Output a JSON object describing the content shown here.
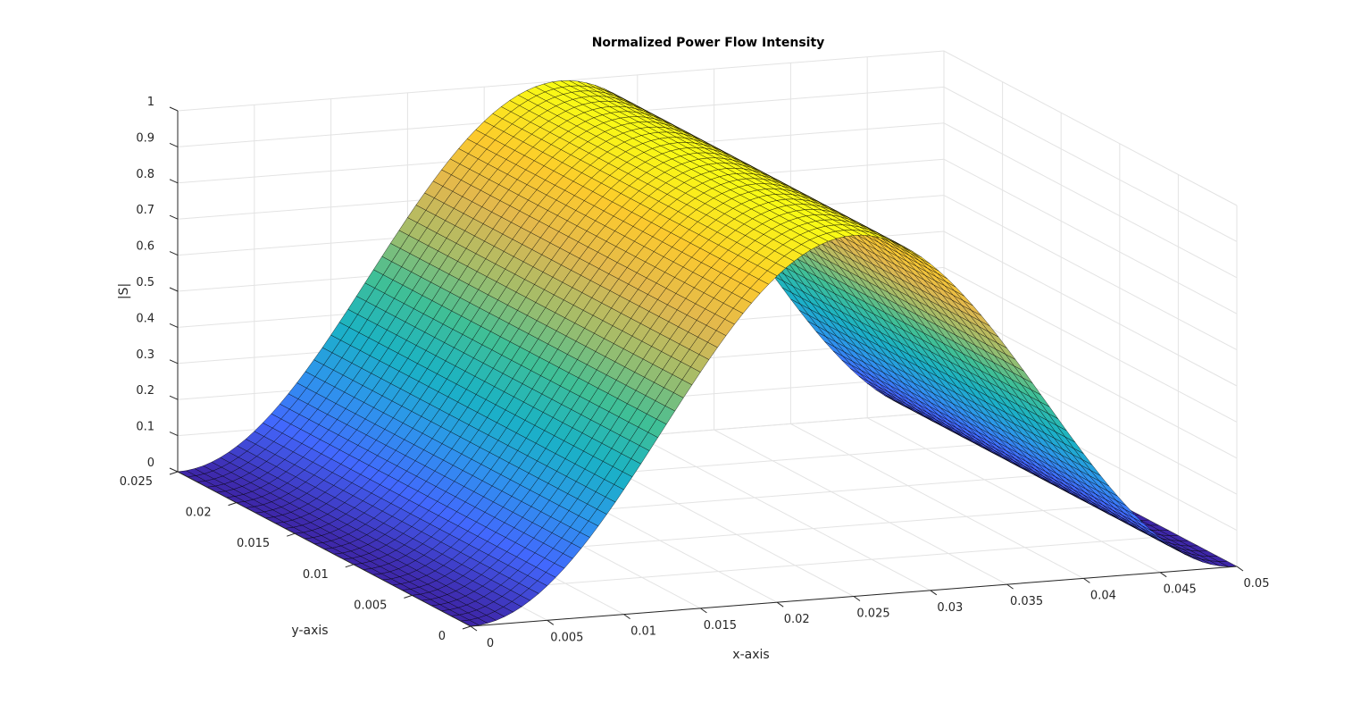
{
  "chart_data": {
    "type": "surface",
    "title": "Normalized Power Flow Intensity",
    "xlabel": "x-axis",
    "ylabel": "y-axis",
    "zlabel": "|S|",
    "xlim": [
      0,
      0.05
    ],
    "ylim": [
      0,
      0.025
    ],
    "zlim": [
      0,
      1
    ],
    "x_ticks": [
      "0",
      "0.005",
      "0.01",
      "0.015",
      "0.02",
      "0.025",
      "0.03",
      "0.035",
      "0.04",
      "0.045",
      "0.05"
    ],
    "y_ticks": [
      "0",
      "0.005",
      "0.01",
      "0.015",
      "0.02",
      "0.025"
    ],
    "z_ticks": [
      "0",
      "0.1",
      "0.2",
      "0.3",
      "0.4",
      "0.5",
      "0.6",
      "0.7",
      "0.8",
      "0.9",
      "1"
    ],
    "function": "|S| = sin^2(pi * x / 0.05), constant along y",
    "grid": true,
    "colormap": "parula",
    "colormap_stops": [
      "#3E26A8",
      "#4367FD",
      "#2D96EC",
      "#1AB2C5",
      "#3FBF97",
      "#A3BD6A",
      "#E1B74F",
      "#FCCA2D",
      "#F9FB15"
    ],
    "x": [
      0,
      0.005,
      0.01,
      0.015,
      0.02,
      0.025,
      0.03,
      0.035,
      0.04,
      0.045,
      0.05
    ],
    "z_profile": [
      0,
      0.095,
      0.345,
      0.655,
      0.905,
      1.0,
      0.905,
      0.655,
      0.345,
      0.095,
      0
    ]
  }
}
